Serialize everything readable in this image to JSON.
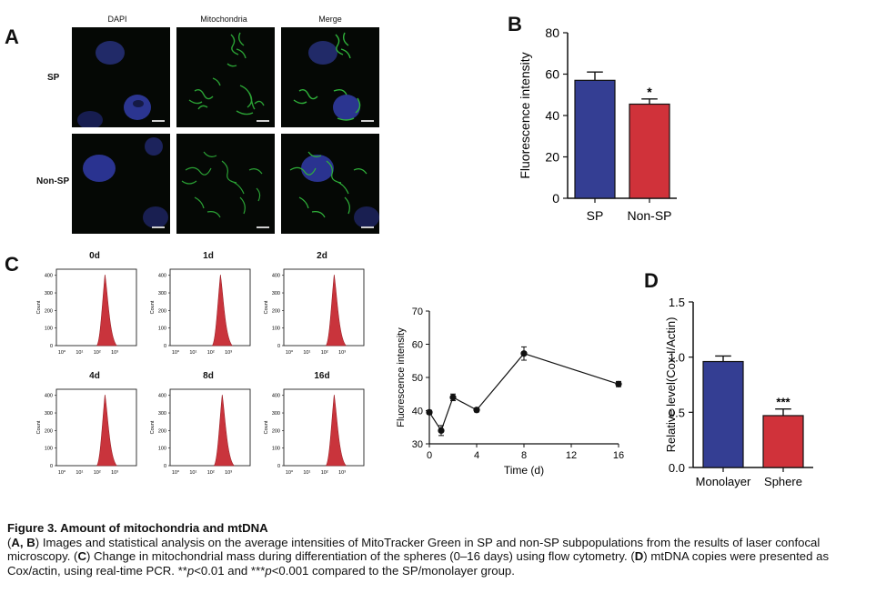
{
  "panels": {
    "A": {
      "letter": "A",
      "columns": [
        "DAPI",
        "Mitochondria",
        "Merge"
      ],
      "rows": [
        "SP",
        "Non-SP"
      ]
    },
    "B": {
      "letter": "B",
      "colors": {
        "SP": "#343e93",
        "Non-SP": "#d0323a"
      }
    },
    "C": {
      "letter": "C",
      "histograms": [
        {
          "label": "0d",
          "peak_decade": 2.5
        },
        {
          "label": "1d",
          "peak_decade": 2.6
        },
        {
          "label": "2d",
          "peak_decade": 2.6
        },
        {
          "label": "4d",
          "peak_decade": 2.5
        },
        {
          "label": "8d",
          "peak_decade": 2.7
        },
        {
          "label": "16d",
          "peak_decade": 2.6
        }
      ],
      "hist_y_ticks": [
        "0",
        "100",
        "200",
        "300",
        "400"
      ],
      "hist_y_label": "Count",
      "hist_x_ticks": [
        "10⁰",
        "10¹",
        "10²",
        "10³"
      ],
      "hist_color": "#c9343c"
    },
    "D": {
      "letter": "D",
      "colors": {
        "Monolayer": "#343e93",
        "Sphere": "#d0323a"
      }
    }
  },
  "chart_data": [
    {
      "id": "B",
      "type": "bar",
      "categories": [
        "SP",
        "Non-SP"
      ],
      "values": [
        57,
        45.5
      ],
      "errors": [
        4,
        2.5
      ],
      "significance": [
        "",
        "*"
      ],
      "ylabel": "Fluorescence intensity",
      "ylim": [
        0,
        80
      ],
      "yticks": [
        0,
        20,
        40,
        60,
        80
      ]
    },
    {
      "id": "C-line",
      "type": "line",
      "x": [
        0,
        1,
        2,
        4,
        8,
        16
      ],
      "values": [
        39.5,
        34,
        44,
        40.2,
        57.2,
        48
      ],
      "errors": [
        0.6,
        1.5,
        1.0,
        0.6,
        2.0,
        0.8
      ],
      "xlabel": "Time (d)",
      "ylabel": "Fluorescence intensity",
      "xlim": [
        0,
        16
      ],
      "xticks": [
        0,
        4,
        8,
        12,
        16
      ],
      "ylim": [
        30,
        70
      ],
      "yticks": [
        30,
        40,
        50,
        60,
        70
      ]
    },
    {
      "id": "D",
      "type": "bar",
      "categories": [
        "Monolayer",
        "Sphere"
      ],
      "values": [
        0.96,
        0.47
      ],
      "errors": [
        0.05,
        0.06
      ],
      "significance": [
        "",
        "***"
      ],
      "ylabel": "Relative level(Cox I/Actin)",
      "ylim": [
        0,
        1.5
      ],
      "yticks": [
        "0.0",
        "0.5",
        "1.0",
        "1.5"
      ]
    }
  ],
  "caption": {
    "title": "Figure 3. Amount of mitochondria and mtDNA",
    "p1_a": "A, B",
    "p1_b": ") Images and statistical analysis on the average intensities of MitoTracker Green in SP and non-SP subpopulations from the results of laser confocal microscopy. (",
    "p1_c": "C",
    "p1_d": ") Change in mitochondrial mass during differentiation of the spheres (0–16 days) using flow cytometry. (",
    "p1_e": "D",
    "p1_f": ") mtDNA copies were presented as Cox/actin, using real-time PCR. **",
    "p1_g": "p",
    "p1_h": "<0.01 and ***",
    "p1_i": "p",
    "p1_j": "<0.001 compared to the SP/monolayer group."
  }
}
